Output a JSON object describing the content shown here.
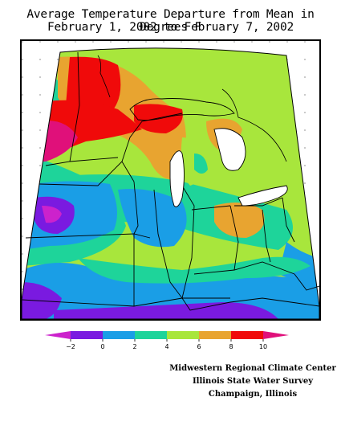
{
  "title_line_1": "Average Temperature Departure from Mean in Degrees F",
  "title_line_2": "February 1, 2002 to February 7, 2002",
  "legend": {
    "labels": [
      "−2",
      "0",
      "2",
      "4",
      "6",
      "8",
      "10"
    ],
    "bins": [
      {
        "range": "< -2",
        "color": "#cc22cc"
      },
      {
        "range": "-2 to 0",
        "color": "#7a1ae0"
      },
      {
        "range": "0 to 2",
        "color": "#1a9ee6"
      },
      {
        "range": "2 to 4",
        "color": "#1ed49a"
      },
      {
        "range": "4 to 6",
        "color": "#a8e63c"
      },
      {
        "range": "6 to 8",
        "color": "#e8a430"
      },
      {
        "range": "8 to 10",
        "color": "#f00a0a"
      },
      {
        "range": "> 10",
        "color": "#e0107a"
      }
    ]
  },
  "credits": {
    "line_1": "Midwestern Regional Climate Center",
    "line_2": "Illinois State Water Survey",
    "line_3": "Champaign, Illinois"
  },
  "map": {
    "projection": "Midwest region, conic",
    "icons": [
      "state-boundary",
      "county-graticule",
      "great-lakes-shoreline"
    ]
  }
}
